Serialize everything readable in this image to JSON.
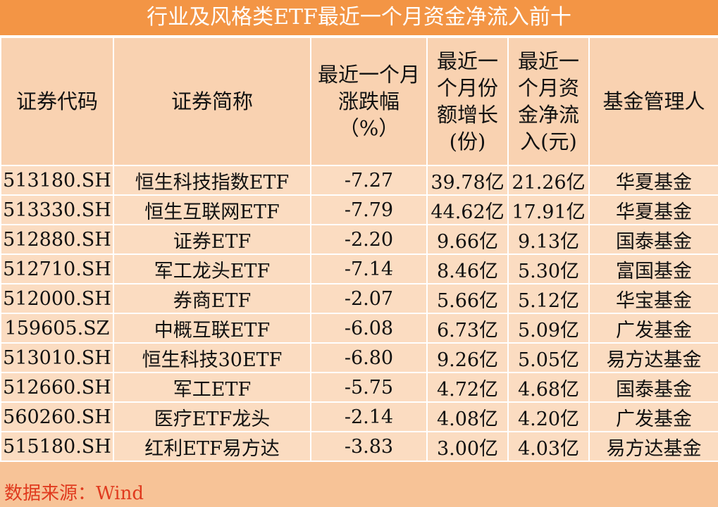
{
  "title": "行业及风格类ETF最近一个月资金净流入前十",
  "headers": {
    "code": "证券代码",
    "name": "证券简称",
    "change": [
      "最近一个月",
      "涨跌幅",
      "（%）"
    ],
    "shares": [
      "最近一",
      "个月份",
      "额增长",
      "(份)"
    ],
    "inflow": [
      "最近一",
      "个月资",
      "金净流",
      "入(元)"
    ],
    "manager": "基金管理人"
  },
  "rows": [
    {
      "code": "513180.SH",
      "name": "恒生科技指数ETF",
      "change": "-7.27",
      "shares": "39.78亿",
      "inflow": "21.26亿",
      "manager": "华夏基金"
    },
    {
      "code": "513330.SH",
      "name": "恒生互联网ETF",
      "change": "-7.79",
      "shares": "44.62亿",
      "inflow": "17.91亿",
      "manager": "华夏基金"
    },
    {
      "code": "512880.SH",
      "name": "证券ETF",
      "change": "-2.20",
      "shares": "9.66亿",
      "inflow": "9.13亿",
      "manager": "国泰基金"
    },
    {
      "code": "512710.SH",
      "name": "军工龙头ETF",
      "change": "-7.14",
      "shares": "8.46亿",
      "inflow": "5.30亿",
      "manager": "富国基金"
    },
    {
      "code": "512000.SH",
      "name": "券商ETF",
      "change": "-2.07",
      "shares": "5.66亿",
      "inflow": "5.12亿",
      "manager": "华宝基金"
    },
    {
      "code": "159605.SZ",
      "name": "中概互联ETF",
      "change": "-6.08",
      "shares": "6.73亿",
      "inflow": "5.09亿",
      "manager": "广发基金"
    },
    {
      "code": "513010.SH",
      "name": "恒生科技30ETF",
      "change": "-6.80",
      "shares": "9.26亿",
      "inflow": "5.05亿",
      "manager": "易方达基金"
    },
    {
      "code": "512660.SH",
      "name": "军工ETF",
      "change": "-5.75",
      "shares": "4.72亿",
      "inflow": "4.68亿",
      "manager": "国泰基金"
    },
    {
      "code": "560260.SH",
      "name": "医疗ETF龙头",
      "change": "-2.14",
      "shares": "4.08亿",
      "inflow": "4.20亿",
      "manager": "广发基金"
    },
    {
      "code": "515180.SH",
      "name": "红利ETF易方达",
      "change": "-3.83",
      "shares": "3.00亿",
      "inflow": "4.03亿",
      "manager": "易方达基金"
    }
  ],
  "source": "数据来源：Wind"
}
